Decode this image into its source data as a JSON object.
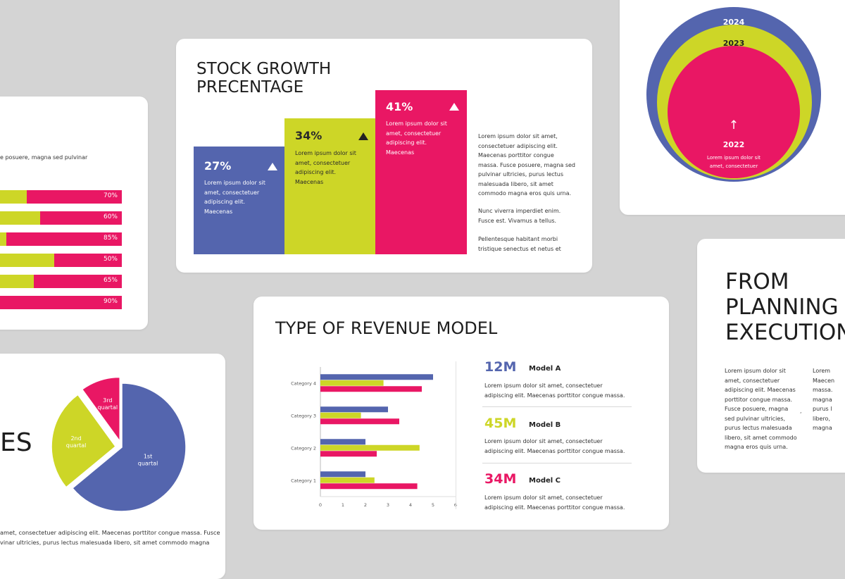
{
  "colors": {
    "blue": "#5465ae",
    "lime": "#cdd627",
    "pink": "#e91764",
    "bg": "#d4d4d4"
  },
  "left_bars_card": {
    "desc": "e posuere, magna sed pulvinar",
    "rows": [
      {
        "lime_fraction": 0.3,
        "label": "70%"
      },
      {
        "lime_fraction": 0.4,
        "label": "60%"
      },
      {
        "lime_fraction": 0.15,
        "label": "85%"
      },
      {
        "lime_fraction": 0.5,
        "label": "50%"
      },
      {
        "lime_fraction": 0.35,
        "label": "65%"
      },
      {
        "lime_fraction": 0.1,
        "label": "90%"
      }
    ]
  },
  "stock_card": {
    "title_line1": "STOCK GROWTH",
    "title_line2": "PRECENTAGE",
    "bars": [
      {
        "value": "27%",
        "text": "Lorem ipsum dolor sit amet, consectetuer adipiscing elit. Maecenas",
        "trend": "up"
      },
      {
        "value": "34%",
        "text": "Lorem ipsum dolor sit amet, consectetuer adipiscing elit. Maecenas",
        "trend": "up"
      },
      {
        "value": "41%",
        "text": "Lorem ipsum dolor sit amet, consectetuer adipiscing elit. Maecenas",
        "trend": "up"
      }
    ],
    "para1": "Lorem ipsum dolor sit amet, consectetuer adipiscing elit. Maecenas porttitor congue massa. Fusce posuere, magna sed pulvinar ultricies, purus lectus malesuada libero, sit amet commodo magna eros quis urna.",
    "para2": "Nunc viverra imperdiet enim. Fusce est. Vivamus a tellus.",
    "para3": "Pellentesque habitant morbi tristique senectus et netus et"
  },
  "circles_card": {
    "years": [
      "2024",
      "2023",
      "2022"
    ],
    "arrow": "↑",
    "text": "Lorem ipsum dolor sit amet, consectetuer"
  },
  "pie_card": {
    "title_fragment": "ES",
    "chart_data": {
      "type": "pie",
      "slices": [
        {
          "label_line1": "1st",
          "label_line2": "quartal",
          "value": 64
        },
        {
          "label_line1": "2nd",
          "label_line2": "quartal",
          "value": 26
        },
        {
          "label_line1": "3rd",
          "label_line2": "quartal",
          "value": 10
        }
      ]
    },
    "text_line1": "amet, consectetuer adipiscing elit. Maecenas porttitor congue massa. Fusce",
    "text_line2": "vinar ultricies, purus lectus malesuada libero, sit amet commodo magna"
  },
  "revenue_card": {
    "title": "TYPE OF REVENUE MODEL",
    "chart_data": {
      "type": "bar",
      "orientation": "horizontal",
      "categories": [
        "Category 4",
        "Category 3",
        "Category 2",
        "Category 1"
      ],
      "series": [
        {
          "values": [
            5.0,
            3.0,
            2.0,
            2.0
          ]
        },
        {
          "values": [
            2.8,
            1.8,
            4.4,
            2.4
          ]
        },
        {
          "values": [
            4.5,
            3.5,
            2.5,
            4.3
          ]
        }
      ],
      "xticks": [
        "0",
        "1",
        "2",
        "3",
        "4",
        "5",
        "6"
      ],
      "xlim": [
        0,
        6
      ]
    },
    "models": [
      {
        "value": "12M",
        "name": "Model A",
        "desc": "Lorem ipsum dolor sit amet, consectetuer adipiscing elit. Maecenas porttitor congue massa."
      },
      {
        "value": "45M",
        "name": "Model B",
        "desc": "Lorem ipsum dolor sit amet, consectetuer adipiscing elit. Maecenas porttitor congue massa."
      },
      {
        "value": "34M",
        "name": "Model C",
        "desc": "Lorem ipsum dolor sit amet, consectetuer adipiscing elit. Maecenas porttitor congue massa."
      }
    ]
  },
  "planning_card": {
    "title_line1": "FROM",
    "title_line2": "PLANNING",
    "title_line3": "EXECUTION",
    "col1": "Lorem ipsum dolor sit amet, consectetuer adipiscing elit. Maecenas porttitor congue massa. Fusce posuere, magna sed pulvinar ultricies, purus lectus malesuada libero, sit amet commodo magna eros quis urna.",
    "col2_lines": [
      "Lorem",
      "Maecen",
      "massa.",
      "magna",
      "purus l",
      "libero,",
      "magna"
    ],
    "separator": ","
  }
}
